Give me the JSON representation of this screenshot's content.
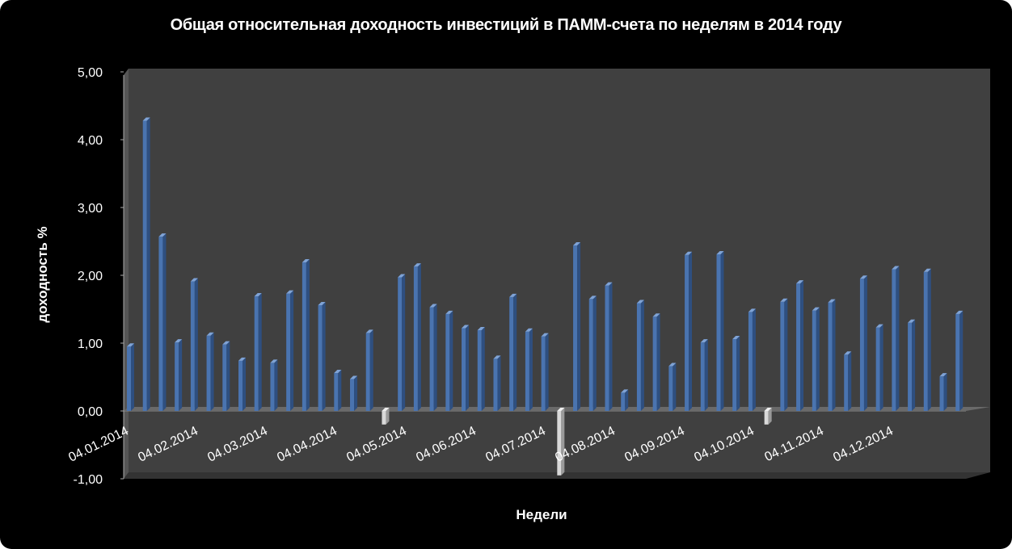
{
  "chart_data": {
    "type": "bar",
    "title": "Общая относительная доходность  инвестиций в ПАММ-счета по неделям в 2014 году",
    "xlabel": "Недели",
    "ylabel": "доходность %",
    "ylim": [
      -1.0,
      5.0
    ],
    "ytick_labels": [
      "-1,00",
      "0,00",
      "1,00",
      "2,00",
      "3,00",
      "4,00",
      "5,00"
    ],
    "xtick_labels": [
      "04.01.2014",
      "04.02.2014",
      "04.03.2014",
      "04.04.2014",
      "04.05.2014",
      "04.06.2014",
      "04.07.2014",
      "04.08.2014",
      "04.09.2014",
      "04.10.2014",
      "04.11.2014",
      "04.12.2014"
    ],
    "grid": false,
    "legend": "none",
    "colors": {
      "background": "#000000",
      "plot_area": "#404040",
      "bar": "#4a74b0",
      "negative_bar": "#d9d9d9",
      "text": "#ffffff"
    },
    "values": [
      0.95,
      4.28,
      2.57,
      1.01,
      1.91,
      1.11,
      0.98,
      0.74,
      1.69,
      0.71,
      1.73,
      2.19,
      1.56,
      0.56,
      0.47,
      1.15,
      -0.2,
      1.97,
      2.13,
      1.53,
      1.43,
      1.22,
      1.19,
      0.77,
      1.68,
      1.17,
      1.1,
      -0.95,
      2.44,
      1.65,
      1.85,
      0.27,
      1.59,
      1.39,
      0.66,
      2.3,
      1.01,
      2.31,
      1.06,
      1.46,
      -0.2,
      1.61,
      1.88,
      1.48,
      1.6,
      0.83,
      1.95,
      1.23,
      2.09,
      1.3,
      2.05,
      0.51,
      1.43
    ]
  }
}
